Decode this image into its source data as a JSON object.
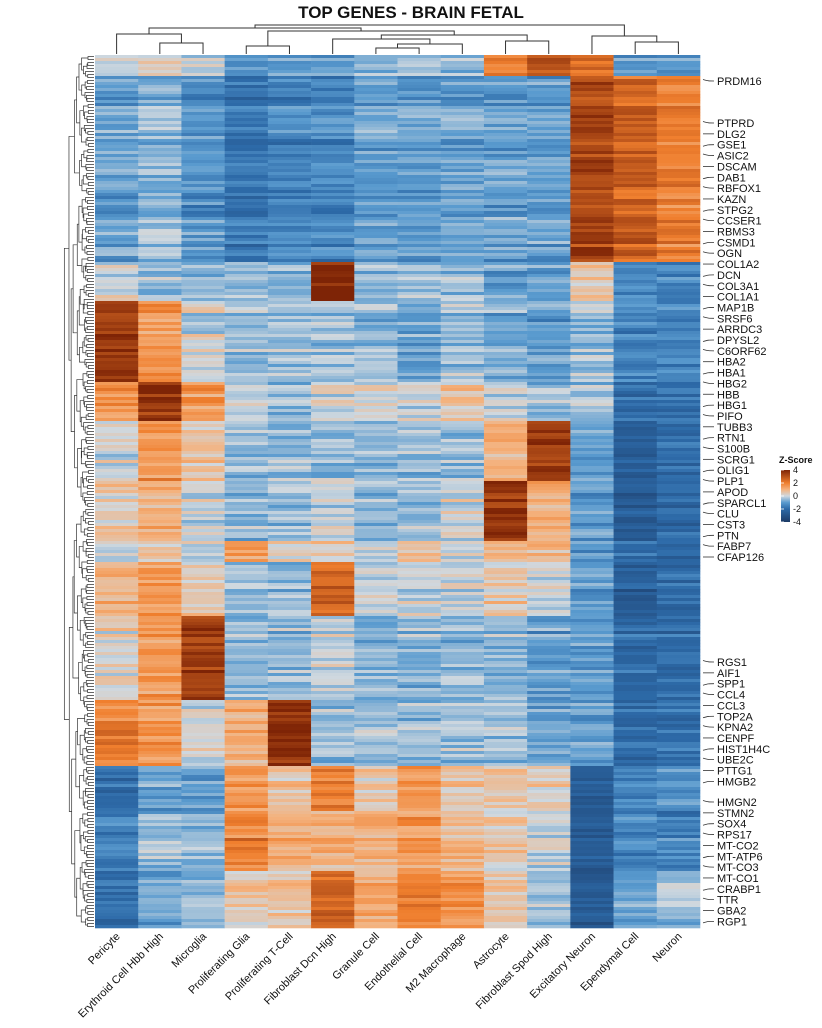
{
  "chart_data": {
    "type": "heatmap",
    "title": "TOP GENES - BRAIN FETAL",
    "columns": [
      "Pericyte",
      "Erythroid Cell Hbb High",
      "Microglia",
      "Proliferating Glia",
      "Proliferating T-Cell",
      "Fibroblast Dcn High",
      "Granule Cell",
      "Endothelial Cell",
      "M2 Macrophage",
      "Astrocyte",
      "Fibroblast Spod High",
      "Excitatory Neuron",
      "Ependymal Cell",
      "Neuron"
    ],
    "row_clusters": [
      {
        "rows": 7,
        "values": [
          0,
          0.5,
          0,
          -1,
          -1,
          -1,
          -0.5,
          -0.5,
          -0.5,
          2,
          3,
          2.5,
          -1,
          -1
        ]
      },
      {
        "rows": 62,
        "values": [
          -1,
          -0.6,
          -1.2,
          -1.8,
          -1.5,
          -1.5,
          -1,
          -1,
          -1,
          -1,
          -1,
          3.2,
          2.6,
          2
        ]
      },
      {
        "rows": 13,
        "values": [
          0,
          -0.5,
          -0.5,
          -0.5,
          -0.5,
          4,
          -0.5,
          -0.5,
          -0.5,
          -1,
          -1,
          0.5,
          -1.5,
          -1.5
        ]
      },
      {
        "rows": 27,
        "values": [
          3.5,
          1.5,
          0,
          -0.5,
          -0.5,
          -0.5,
          -0.5,
          -1,
          -0.5,
          -0.8,
          -1,
          -0.5,
          -1.5,
          -1.5
        ]
      },
      {
        "rows": 13,
        "values": [
          1.5,
          3.5,
          1.5,
          0,
          -0.5,
          0,
          0,
          0,
          0.5,
          0,
          -0.5,
          -0.5,
          -2,
          -2
        ]
      },
      {
        "rows": 20,
        "values": [
          0,
          1.5,
          0.5,
          -0.5,
          -0.5,
          -0.5,
          -0.5,
          -0.5,
          -0.5,
          1,
          3.5,
          -1,
          -2.5,
          -2
        ]
      },
      {
        "rows": 20,
        "values": [
          0.5,
          1,
          0,
          -0.5,
          -0.5,
          0,
          -0.5,
          -0.5,
          0,
          3.5,
          1,
          -1,
          -2.5,
          -2
        ]
      },
      {
        "rows": 7,
        "values": [
          0,
          0.5,
          0,
          1.5,
          0.5,
          0.5,
          0,
          1,
          0,
          1,
          1,
          -1,
          -2,
          -2
        ]
      },
      {
        "rows": 18,
        "values": [
          1,
          1.5,
          0.5,
          -0.5,
          -0.5,
          2.5,
          0,
          0,
          0,
          0.5,
          0,
          -1,
          -2.5,
          -2
        ]
      },
      {
        "rows": 28,
        "values": [
          0.3,
          1.5,
          3.5,
          -0.5,
          -0.5,
          0,
          -0.5,
          -0.5,
          -0.5,
          -0.5,
          -1,
          -1,
          -2,
          -2
        ]
      },
      {
        "rows": 22,
        "values": [
          2,
          1.5,
          0,
          1,
          3.8,
          -0.5,
          -0.5,
          -0.5,
          -0.5,
          -0.5,
          -1,
          -1,
          -2,
          -2
        ]
      },
      {
        "rows": 15,
        "values": [
          -2,
          -1,
          -1,
          1.5,
          0.5,
          2,
          0.5,
          1.5,
          0.5,
          0.5,
          0.3,
          -2.5,
          -1.5,
          -1
        ]
      },
      {
        "rows": 20,
        "values": [
          -1.5,
          -0.5,
          -0.5,
          2,
          1,
          1,
          1,
          1.5,
          0.8,
          0.5,
          0,
          -2.5,
          -1.5,
          -1.5
        ]
      },
      {
        "rows": 19,
        "values": [
          -2,
          -1,
          -0.5,
          0.5,
          0.5,
          2.5,
          1,
          2,
          1.5,
          0.5,
          -0.5,
          -2.5,
          -1,
          -0.5
        ]
      }
    ],
    "gene_labels": [
      [
        "PRDM16"
      ],
      [
        "PTPRD",
        "DLG2",
        "GSE1",
        "ASIC2",
        "DSCAM",
        "DAB1",
        "RBFOX1",
        "KAZN",
        "STPG2",
        "CCSER1",
        "RBMS3",
        "CSMD1",
        "OGN",
        "COL1A2",
        "DCN",
        "COL3A1",
        "COL1A1",
        "MAP1B",
        "SRSF6",
        "ARRDC3",
        "DPYSL2",
        "C6ORF62",
        "HBA2",
        "HBA1",
        "HBG2",
        "HBB",
        "HBG1",
        "PIFO",
        "TUBB3",
        "RTN1",
        "S100B",
        "SCRG1",
        "OLIG1",
        "PLP1",
        "APOD",
        "SPARCL1",
        "CLU",
        "CST3",
        "PTN",
        "FABP7",
        "CFAP126"
      ],
      [
        "RGS1",
        "AIF1",
        "SPP1",
        "CCL4",
        "CCL3",
        "TOP2A",
        "KPNA2",
        "CENPF",
        "HIST1H4C",
        "UBE2C",
        "PTTG1",
        "HMGB2"
      ],
      [
        "HMGN2",
        "STMN2",
        "SOX4",
        "RPS17",
        "MT-CO2",
        "MT-ATP6",
        "MT-CO3",
        "MT-CO1",
        "CRABP1",
        "TTR",
        "GBA2",
        "RGP1"
      ]
    ],
    "legend": {
      "title": "Z-Score",
      "ticks": [
        "4",
        "2",
        "0",
        "-2",
        "-4"
      ],
      "range": [
        -4,
        4
      ]
    },
    "colors": {
      "-4": "#1c3a66",
      "-2": "#2d6aa8",
      "-1": "#5a9bcf",
      "0": "#cfd8df",
      "1": "#f4b27e",
      "2": "#f07f2e",
      "4": "#7e2406"
    },
    "dendrograms": {
      "rows": "left",
      "columns": "top"
    }
  }
}
